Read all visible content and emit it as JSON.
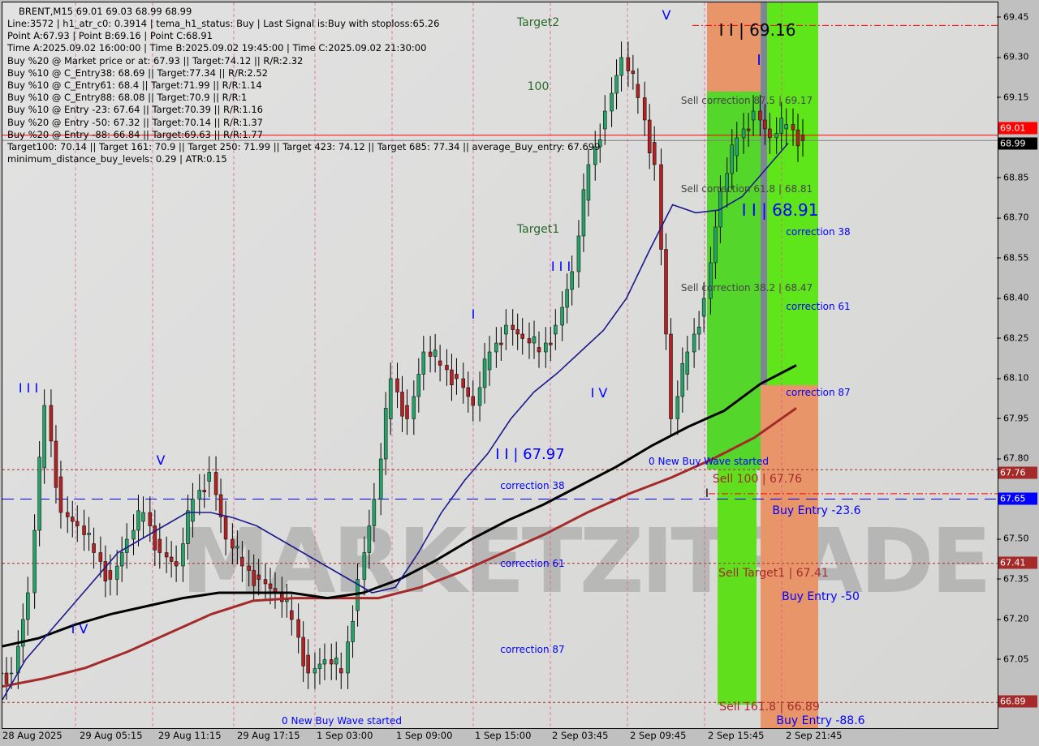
{
  "header": {
    "title": "BRENT,M15  69.01 69.03 68.99 68.99",
    "lines": [
      "Line:3572 | h1_atr_c0: 0.3914 | tema_h1_status: Buy | Last Signal is:Buy with stoploss:65.26",
      "Point A:67.93 | Point B:69.16 | Point C:68.91",
      "Time A:2025.09.02 16:00:00 | Time B:2025.09.02 19:45:00 | Time C:2025.09.02 21:30:00",
      "Buy %20 @ Market price or at: 67.93 || Target:74.12 || R/R:2.32",
      "Buy %10 @ C_Entry38: 68.69 || Target:77.34 || R/R:2.52",
      "Buy %10 @ C_Entry61: 68.4 || Target:71.99 || R/R:1.14",
      "Buy %10 @ C_Entry88: 68.08 || Target:70.9 || R/R:1",
      "Buy %10 @ Entry -23: 67.64 || Target:70.39 || R/R:1.16",
      "Buy %20 @ Entry -50: 67.32 || Target:70.14 || R/R:1.37",
      "Buy %20 @ Entry -88: 66.84 || Target:69.63 || R/R:1.77",
      "Target100: 70.14 || Target 161: 70.9 || Target 250: 71.99 || Target 423: 74.12 || Target 685: 77.34 || average_Buy_entry: 67.699",
      "minimum_distance_buy_levels: 0.29 | ATR:0.15"
    ]
  },
  "watermark": "MARKETZITRADE",
  "colors": {
    "bull": "#26a269",
    "bear": "#b22222",
    "ma_fast": "#1a1a8c",
    "ma_mid": "#000000",
    "ma_slow": "#a52a2a",
    "green_zone": "#5ee61a",
    "orange_zone": "#e8956a"
  },
  "chart_data": {
    "type": "candlestick",
    "symbol": "BRENT",
    "timeframe": "M15",
    "ylim": [
      66.8,
      69.55
    ],
    "y_ticks": [
      "69.45",
      "69.30",
      "69.15",
      "68.85",
      "68.70",
      "68.55",
      "68.40",
      "68.25",
      "68.10",
      "67.95",
      "67.80",
      "67.50",
      "67.35",
      "67.20",
      "67.05"
    ],
    "x_ticks": [
      "28 Aug 2025",
      "29 Aug 05:15",
      "29 Aug 11:15",
      "29 Aug 17:15",
      "1 Sep 03:00",
      "1 Sep 09:00",
      "1 Sep 15:00",
      "2 Sep 03:45",
      "2 Sep 09:45",
      "2 Sep 15:45",
      "2 Sep 21:45"
    ],
    "price_tags": [
      {
        "value": "69.01",
        "color": "#ff0000"
      },
      {
        "value": "68.99",
        "color": "#000000"
      },
      {
        "value": "67.76",
        "color": "#a52a2a"
      },
      {
        "value": "67.65",
        "color": "#0000ff"
      },
      {
        "value": "67.41",
        "color": "#a52a2a"
      },
      {
        "value": "66.89",
        "color": "#a52a2a"
      }
    ],
    "levels": [
      69.42,
      69.01,
      68.99,
      67.76,
      67.67,
      67.65,
      67.41,
      66.89
    ],
    "closes": [
      67.0,
      67.3,
      68.0,
      67.6,
      67.55,
      67.45,
      67.35,
      67.5,
      67.6,
      67.45,
      67.4,
      67.65,
      67.75,
      67.5,
      67.4,
      67.35,
      67.3,
      67.2,
      67.0,
      67.05,
      67.0,
      67.35,
      67.65,
      68.1,
      67.95,
      68.2,
      68.15,
      68.1,
      68.0,
      68.2,
      68.3,
      68.25,
      68.2,
      68.3,
      68.5,
      68.9,
      69.1,
      69.3,
      69.15,
      68.9,
      67.95,
      68.2,
      68.4,
      68.8,
      69.0,
      69.1,
      69.0,
      69.05,
      68.99
    ],
    "ma_fast": [
      66.9,
      67.05,
      67.15,
      67.25,
      67.35,
      67.45,
      67.5,
      67.55,
      67.6,
      67.6,
      67.58,
      67.55,
      67.5,
      67.45,
      67.4,
      67.35,
      67.3,
      67.32,
      67.45,
      67.6,
      67.72,
      67.82,
      67.95,
      68.05,
      68.12,
      68.2,
      68.28,
      68.4,
      68.58,
      68.75,
      68.72,
      68.73,
      68.78,
      68.88,
      68.98
    ],
    "ma_mid": [
      67.1,
      67.13,
      67.18,
      67.22,
      67.25,
      67.28,
      67.3,
      67.3,
      67.3,
      67.28,
      67.3,
      67.35,
      67.42,
      67.5,
      67.57,
      67.63,
      67.7,
      67.77,
      67.85,
      67.92,
      67.98,
      68.08,
      68.15
    ],
    "ma_slow": [
      66.95,
      66.98,
      67.02,
      67.08,
      67.15,
      67.22,
      67.27,
      67.28,
      67.28,
      67.28,
      67.32,
      67.38,
      67.45,
      67.52,
      67.6,
      67.67,
      67.73,
      67.8,
      67.88,
      67.99
    ]
  },
  "labels": [
    "Target2",
    "100",
    "Target1",
    "I I I",
    "I",
    "I V",
    "I I | 67.97",
    "correction 38",
    "correction 61",
    "correction 87",
    "0 New Buy Wave started",
    "V",
    "I I | 69.16",
    "I",
    "Sell correction 87.5 | 69.17",
    "Sell correction 61.8 | 68.81",
    "I I | 68.91",
    "correction 38",
    "Sell correction 38.2 | 68.47",
    "correction 61",
    "correction 87",
    "0 New Buy Wave started",
    "Sell 100 | 67.76",
    "Buy Entry -23.6",
    "Sell Target1 | 67.41",
    "Buy Entry -50",
    "Sell 161.8 | 66.89",
    "Buy Entry -88.6",
    "I I I",
    "V",
    "I V",
    "I"
  ]
}
